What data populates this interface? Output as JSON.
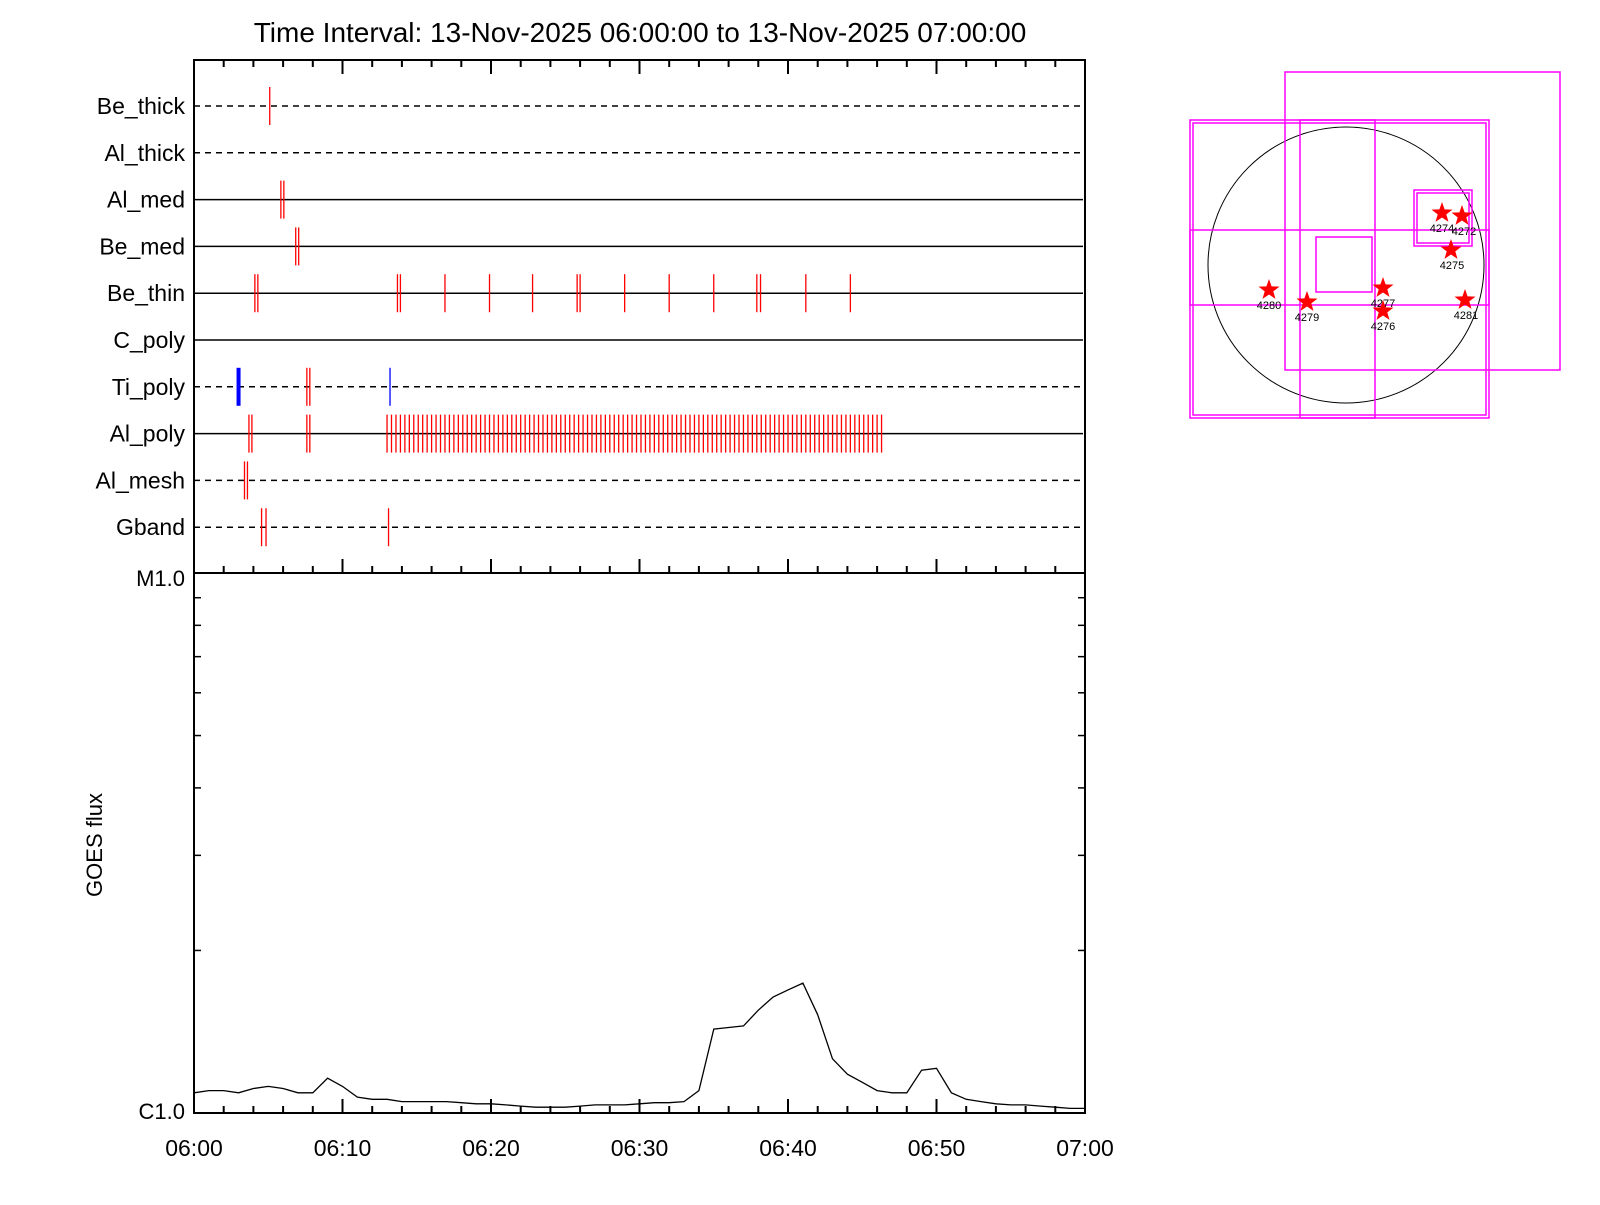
{
  "chart_data": [
    {
      "type": "event-timeline",
      "title": "Time Interval: 13-Nov-2025 06:00:00 to 13-Nov-2025 07:00:00",
      "x_range": [
        "06:00",
        "07:00"
      ],
      "rows": [
        {
          "label": "Be_thick",
          "style": "dashed",
          "events": [
            {
              "t": 5.1,
              "color": "#ff0000"
            }
          ]
        },
        {
          "label": "Al_thick",
          "style": "dashed",
          "events": []
        },
        {
          "label": "Al_med",
          "style": "solid",
          "events": [
            {
              "t": 5.85,
              "color": "#ff0000"
            },
            {
              "t": 6.05,
              "color": "#ff0000"
            }
          ]
        },
        {
          "label": "Be_med",
          "style": "solid",
          "events": [
            {
              "t": 6.85,
              "color": "#ff0000"
            },
            {
              "t": 7.05,
              "color": "#ff0000"
            }
          ]
        },
        {
          "label": "Be_thin",
          "style": "solid",
          "events": [
            {
              "t": 4.1,
              "color": "#ff0000"
            },
            {
              "t": 4.3,
              "color": "#ff0000"
            },
            {
              "t": 13.7,
              "color": "#ff0000"
            },
            {
              "t": 13.9,
              "color": "#ff0000"
            },
            {
              "t": 16.9,
              "color": "#ff0000"
            },
            {
              "t": 19.9,
              "color": "#ff0000"
            },
            {
              "t": 22.8,
              "color": "#ff0000"
            },
            {
              "t": 25.8,
              "color": "#ff0000"
            },
            {
              "t": 26.0,
              "color": "#ff0000"
            },
            {
              "t": 29.0,
              "color": "#ff0000"
            },
            {
              "t": 32.0,
              "color": "#ff0000"
            },
            {
              "t": 35.0,
              "color": "#ff0000"
            },
            {
              "t": 37.9,
              "color": "#ff0000"
            },
            {
              "t": 38.15,
              "color": "#ff0000"
            },
            {
              "t": 41.2,
              "color": "#ff0000"
            },
            {
              "t": 44.2,
              "color": "#ff0000"
            }
          ]
        },
        {
          "label": "C_poly",
          "style": "solid",
          "events": []
        },
        {
          "label": "Ti_poly",
          "style": "dashed",
          "events": [
            {
              "t": 3.0,
              "color": "#0000ff",
              "bold": true
            },
            {
              "t": 7.6,
              "color": "#ff0000"
            },
            {
              "t": 7.8,
              "color": "#ff0000"
            },
            {
              "t": 13.2,
              "color": "#0000ff"
            }
          ]
        },
        {
          "label": "Al_poly",
          "style": "solid",
          "events": [
            {
              "t": 3.7,
              "color": "#ff0000"
            },
            {
              "t": 3.9,
              "color": "#ff0000"
            },
            {
              "t": 7.6,
              "color": "#ff0000"
            },
            {
              "t": 7.8,
              "color": "#ff0000"
            }
          ],
          "dense_range": [
            13.0,
            46.4
          ],
          "dense_step": 0.3,
          "dense_color": "#ff0000"
        },
        {
          "label": "Al_mesh",
          "style": "dashed",
          "events": [
            {
              "t": 3.4,
              "color": "#ff0000"
            },
            {
              "t": 3.6,
              "color": "#ff0000"
            }
          ]
        },
        {
          "label": "Gband",
          "style": "dashed",
          "events": [
            {
              "t": 4.55,
              "color": "#ff0000"
            },
            {
              "t": 4.85,
              "color": "#ff0000"
            },
            {
              "t": 13.1,
              "color": "#ff0000"
            }
          ]
        }
      ]
    },
    {
      "type": "line",
      "ylabel": "GOES flux",
      "ytick_labels": [
        "M1.0",
        "C1.0"
      ],
      "y_scale": "log",
      "ylim": [
        1e-06,
        1e-05
      ],
      "xtick_labels": [
        "06:00",
        "06:10",
        "06:20",
        "06:30",
        "06:40",
        "06:50",
        "07:00"
      ],
      "x_minutes": [
        0,
        1,
        2,
        3,
        4,
        5,
        6,
        7,
        8,
        9,
        10,
        11,
        12,
        13,
        14,
        15,
        16,
        17,
        18,
        19,
        20,
        21,
        22,
        23,
        24,
        25,
        26,
        27,
        28,
        29,
        30,
        31,
        32,
        33,
        34,
        35,
        36,
        37,
        38,
        39,
        40,
        41,
        42,
        43,
        44,
        45,
        46,
        47,
        48,
        49,
        50,
        51,
        52,
        53,
        54,
        55,
        56,
        57,
        58,
        59,
        60
      ],
      "values": [
        1.09e-06,
        1.1e-06,
        1.1e-06,
        1.09e-06,
        1.11e-06,
        1.12e-06,
        1.11e-06,
        1.09e-06,
        1.09e-06,
        1.16e-06,
        1.12e-06,
        1.07e-06,
        1.06e-06,
        1.06e-06,
        1.05e-06,
        1.05e-06,
        1.05e-06,
        1.05e-06,
        1.045e-06,
        1.04e-06,
        1.04e-06,
        1.035e-06,
        1.03e-06,
        1.025e-06,
        1.025e-06,
        1.025e-06,
        1.03e-06,
        1.035e-06,
        1.035e-06,
        1.035e-06,
        1.04e-06,
        1.045e-06,
        1.045e-06,
        1.05e-06,
        1.1e-06,
        1.43e-06,
        1.44e-06,
        1.45e-06,
        1.55e-06,
        1.64e-06,
        1.69e-06,
        1.74e-06,
        1.52e-06,
        1.26e-06,
        1.18e-06,
        1.14e-06,
        1.1e-06,
        1.09e-06,
        1.09e-06,
        1.2e-06,
        1.21e-06,
        1.09e-06,
        1.06e-06,
        1.05e-06,
        1.04e-06,
        1.035e-06,
        1.035e-06,
        1.03e-06,
        1.025e-06,
        1.02e-06,
        1.02e-06
      ]
    },
    {
      "type": "scatter",
      "kind": "solar-disk-map",
      "points": [
        {
          "label": "4274"
        },
        {
          "label": "4272"
        },
        {
          "label": "4275"
        },
        {
          "label": "4277"
        },
        {
          "label": "4276"
        },
        {
          "label": "4280"
        },
        {
          "label": "4279"
        },
        {
          "label": "4281"
        }
      ],
      "marker_color": "#ff0000",
      "box_color": "#ff00ff",
      "disk_color": "#000000"
    }
  ]
}
